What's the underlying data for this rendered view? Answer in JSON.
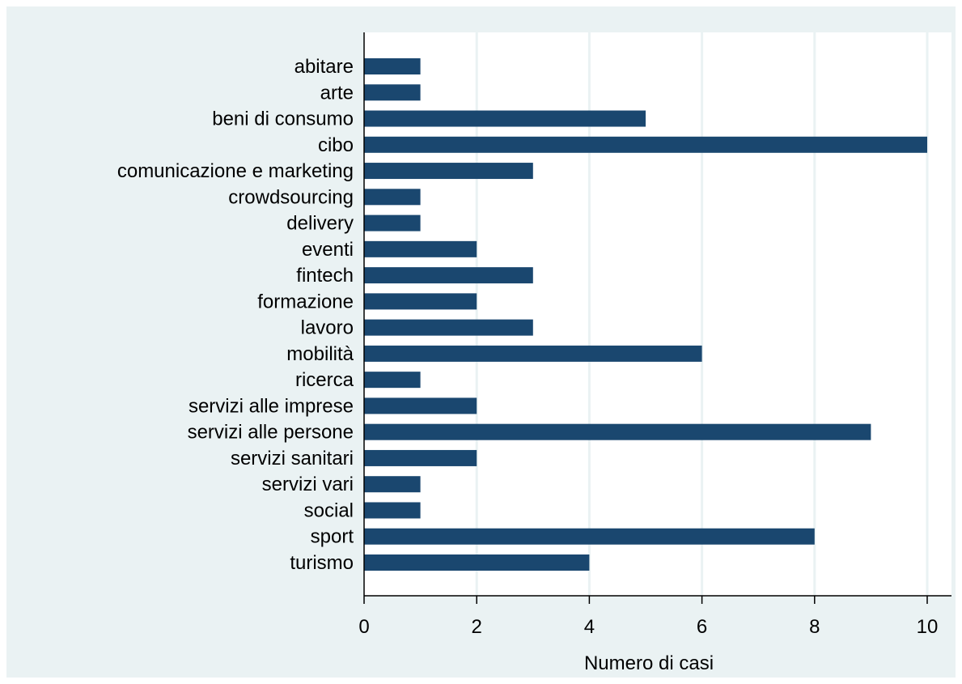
{
  "chart_data": {
    "type": "bar",
    "orientation": "horizontal",
    "categories": [
      "abitare",
      "arte",
      "beni di consumo",
      "cibo",
      "comunicazione e marketing",
      "crowdsourcing",
      "delivery",
      "eventi",
      "fintech",
      "formazione",
      "lavoro",
      "mobilità",
      "ricerca",
      "servizi alle imprese",
      "servizi alle persone",
      "servizi sanitari",
      "servizi vari",
      "social",
      "sport",
      "turismo"
    ],
    "values": [
      1,
      1,
      5,
      10,
      3,
      1,
      1,
      2,
      3,
      2,
      3,
      6,
      1,
      2,
      9,
      2,
      1,
      1,
      8,
      4
    ],
    "xlabel": "Numero di casi",
    "ylabel": "",
    "xlim": [
      0,
      10
    ],
    "xticks": [
      0,
      2,
      4,
      6,
      8,
      10
    ],
    "grid": true,
    "colors": {
      "bar": "#1a476f",
      "background": "#eaf2f3",
      "plot_background": "#ffffff",
      "grid": "#eaf2f3"
    }
  }
}
